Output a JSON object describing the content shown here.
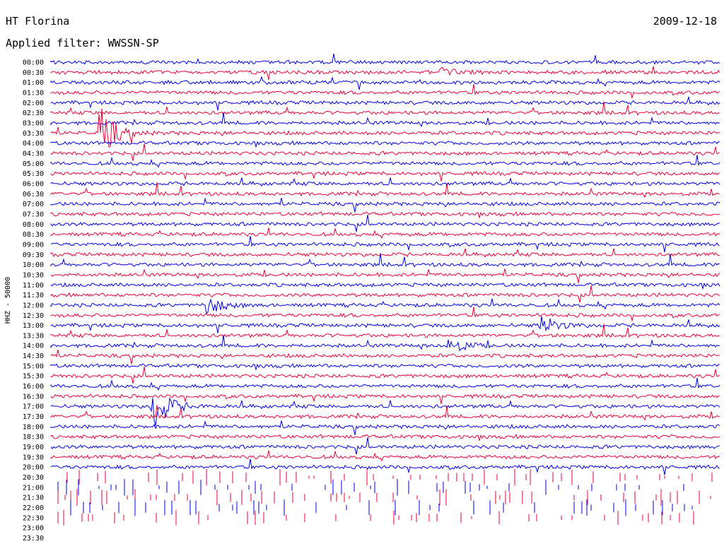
{
  "header": {
    "station": "HT Florina",
    "date": "2009-12-18",
    "filter_label": "Applied filter: WWSSN-SP"
  },
  "chart_data": {
    "type": "line",
    "title": "HT Florina",
    "ylabel": "HHZ - 50000",
    "row_interval_minutes": 30,
    "row_labels": [
      "00:00",
      "00:30",
      "01:00",
      "01:30",
      "02:00",
      "02:30",
      "03:00",
      "03:30",
      "04:00",
      "04:30",
      "05:00",
      "05:30",
      "06:00",
      "06:30",
      "07:00",
      "07:30",
      "08:00",
      "08:30",
      "09:00",
      "09:30",
      "10:00",
      "10:30",
      "11:00",
      "11:30",
      "12:00",
      "12:30",
      "13:00",
      "13:30",
      "14:00",
      "14:30",
      "15:00",
      "15:30",
      "16:00",
      "16:30",
      "17:00",
      "17:30",
      "18:00",
      "18:30",
      "19:00",
      "19:30",
      "20:00",
      "20:30",
      "21:00",
      "21:30",
      "22:00",
      "22:30",
      "23:00",
      "23:30"
    ],
    "colors": {
      "even_rows": "#0000ee",
      "odd_rows": "#ee0033",
      "background": "#ffffff",
      "text": "#000000"
    },
    "traces_recorded_through": "20:00",
    "notable_events": [
      {
        "row": "03:30",
        "position_fraction": 0.07,
        "amplitude": "large",
        "note": "main event, coda through 08:30"
      },
      {
        "row": "17:00",
        "position_fraction": 0.15,
        "amplitude": "large"
      },
      {
        "row": "13:00",
        "position_fraction": 0.73,
        "amplitude": "medium"
      },
      {
        "row": "14:00",
        "position_fraction": 0.59,
        "amplitude": "medium"
      },
      {
        "row": "12:00",
        "position_fraction": 0.23,
        "amplitude": "medium"
      },
      {
        "row": "00:30",
        "position_fraction": 0.58,
        "amplitude": "small"
      }
    ]
  }
}
